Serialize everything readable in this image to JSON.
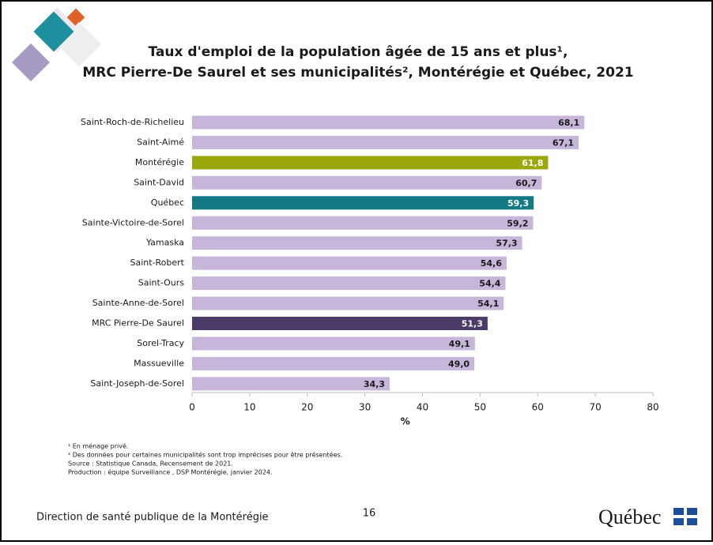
{
  "chart_data": {
    "type": "bar",
    "orientation": "horizontal",
    "title": [
      "Taux d'emploi de la population âgée de 15 ans et plus¹,",
      "MRC Pierre-De Saurel et ses municipalités², Montérégie et Québec, 2021"
    ],
    "categories": [
      "Saint-Roch-de-Richelieu",
      "Saint-Aimé",
      "Montérégie",
      "Saint-David",
      "Québec",
      "Sainte-Victoire-de-Sorel",
      "Yamaska",
      "Saint-Robert",
      "Saint-Ours",
      "Sainte-Anne-de-Sorel",
      "MRC Pierre-De Saurel",
      "Sorel-Tracy",
      "Massueville",
      "Saint-Joseph-de-Sorel"
    ],
    "values": [
      68.1,
      67.1,
      61.8,
      60.7,
      59.3,
      59.2,
      57.3,
      54.6,
      54.4,
      54.1,
      51.3,
      49.1,
      49.0,
      34.3
    ],
    "value_labels": [
      "68,1",
      "67,1",
      "61,8",
      "60,7",
      "59,3",
      "59,2",
      "57,3",
      "54,6",
      "54,4",
      "54,1",
      "51,3",
      "49,1",
      "49,0",
      "34,3"
    ],
    "colors": [
      "#c6b7da",
      "#c6b7da",
      "#9aa80c",
      "#c6b7da",
      "#137985",
      "#c6b7da",
      "#c6b7da",
      "#c6b7da",
      "#c6b7da",
      "#c6b7da",
      "#4b3b69",
      "#c6b7da",
      "#c6b7da",
      "#c6b7da"
    ],
    "xlabel": "%",
    "xlim": [
      0,
      80
    ],
    "xticks": [
      0,
      10,
      20,
      30,
      40,
      50,
      60,
      70,
      80
    ]
  },
  "notes": [
    "¹ En ménage privé.",
    "² Des données pour certaines municipalités sont trop imprécises pour être présentées.",
    "Source : Statistique Canada, Recensement de 2021.",
    "Production : équipe Surveillance , DSP Montérégie, janvier 2024."
  ],
  "footer": {
    "left": "Direction de santé publique de la Montérégie",
    "page": "16",
    "logo": "Québec"
  }
}
